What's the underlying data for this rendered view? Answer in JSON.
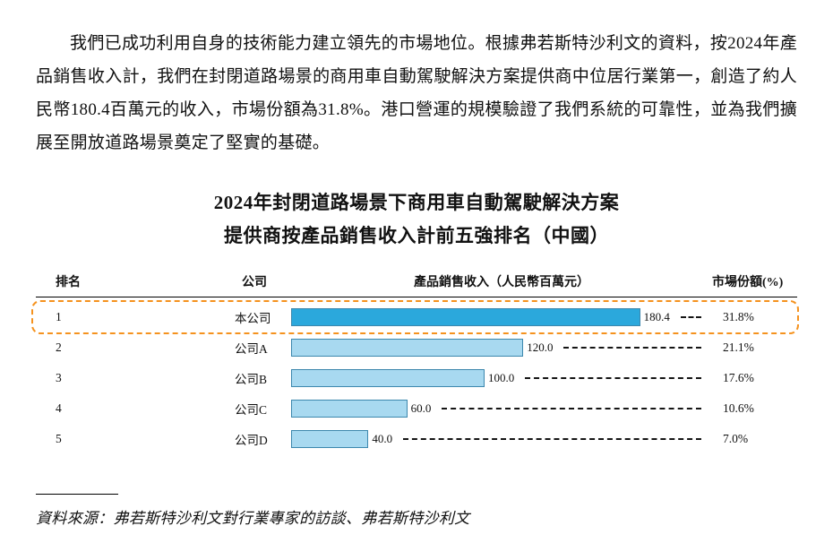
{
  "paragraph": "我們已成功利用自身的技術能力建立領先的市場地位。根據弗若斯特沙利文的資料，按2024年產品銷售收入計，我們在封閉道路場景的商用車自動駕駛解決方案提供商中位居行業第一，創造了約人民幣180.4百萬元的收入，市場份額為31.8%。港口營運的規模驗證了我們系統的可靠性，並為我們擴展至開放道路場景奠定了堅實的基礎。",
  "chart": {
    "title_line1": "2024年封閉道路場景下商用車自動駕駛解決方案",
    "title_line2": "提供商按產品銷售收入計前五強排名（中國）",
    "headers": {
      "rank": "排名",
      "company": "公司",
      "revenue": "產品銷售收入（人民幣百萬元）",
      "share": "市場份額(%)"
    }
  },
  "chart_data": {
    "type": "bar",
    "orientation": "horizontal",
    "title": "2024年封閉道路場景下商用車自動駕駛解決方案提供商按產品銷售收入計前五強排名（中國）",
    "xlabel": "產品銷售收入（人民幣百萬元）",
    "xlim": [
      0,
      200
    ],
    "ranks": [
      "1",
      "2",
      "3",
      "4",
      "5"
    ],
    "categories": [
      "本公司",
      "公司A",
      "公司B",
      "公司C",
      "公司D"
    ],
    "values": [
      180.4,
      120.0,
      100.0,
      60.0,
      40.0
    ],
    "value_labels": [
      "180.4",
      "120.0",
      "100.0",
      "60.0",
      "40.0"
    ],
    "shares": [
      "31.8%",
      "21.1%",
      "17.6%",
      "10.6%",
      "7.0%"
    ],
    "highlighted_row": 0,
    "colors": {
      "primary_bar": "#2BA8DC",
      "secondary_bar": "#A8D9F0",
      "highlight_border": "#F5921E"
    }
  },
  "source": "資料來源：弗若斯特沙利文對行業專家的訪談、弗若斯特沙利文"
}
